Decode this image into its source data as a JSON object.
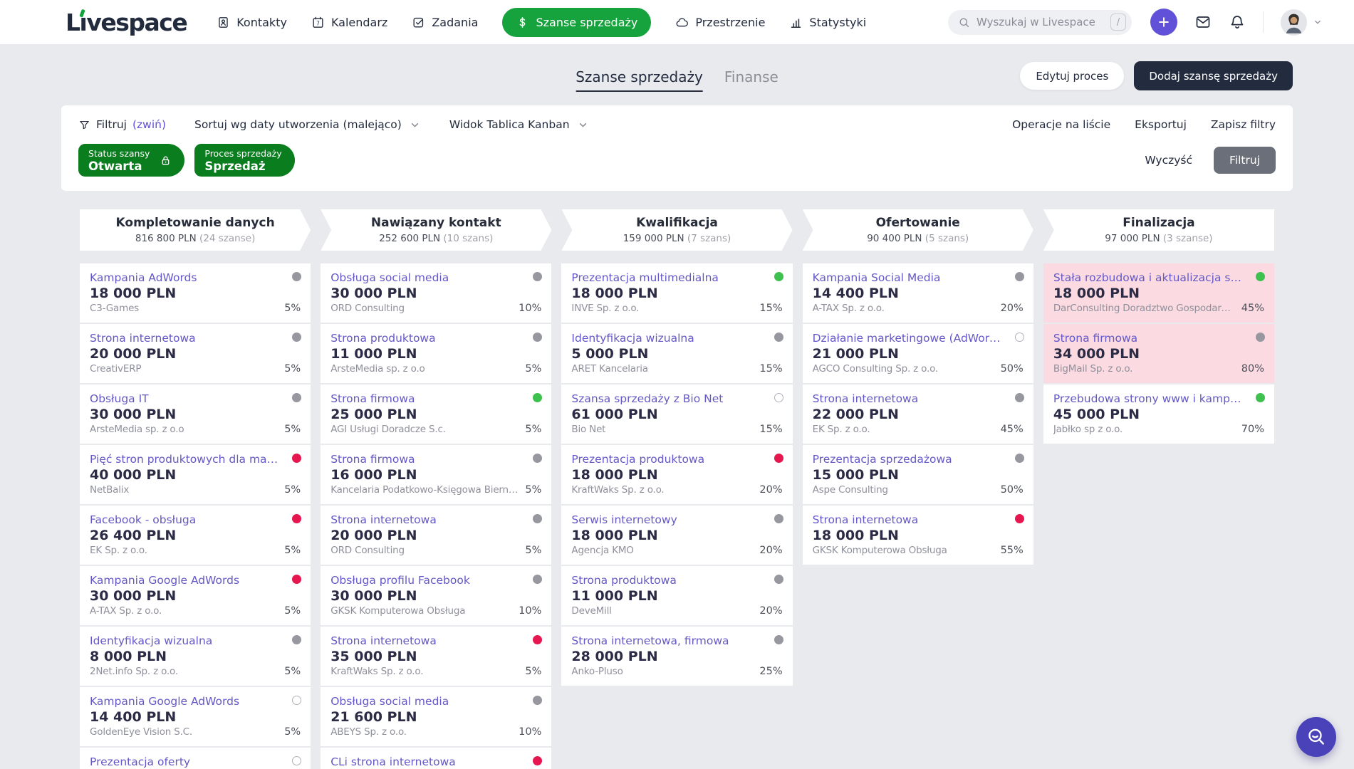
{
  "colors": {
    "brand_green": "#16a23c",
    "chip_green": "#0a7d1e",
    "plus_purple": "#6150d8",
    "fab_purple": "#4a42b8",
    "card_title_purple": "#6458c6",
    "dark_navy": "#232b3e",
    "apply_grey": "#6b6f7a",
    "dot_grey": "#96979f",
    "dot_green": "#3ec14f",
    "dot_red": "#e5174e",
    "highlight_pink": "#fbdbe1"
  },
  "topbar": {
    "logo_text": "Livespace",
    "nav": [
      {
        "label": "Kontakty",
        "icon": "contacts-icon",
        "active": false
      },
      {
        "label": "Kalendarz",
        "icon": "calendar-icon",
        "active": false
      },
      {
        "label": "Zadania",
        "icon": "tasks-icon",
        "active": false
      },
      {
        "label": "Szanse sprzedaży",
        "icon": "dollar-icon",
        "active": true
      },
      {
        "label": "Przestrzenie",
        "icon": "spaces-icon",
        "active": false
      },
      {
        "label": "Statystyki",
        "icon": "stats-icon",
        "active": false
      }
    ],
    "search": {
      "placeholder": "Wyszukaj w Livespace",
      "shortcut_key": "/"
    }
  },
  "page_header": {
    "tabs": [
      {
        "label": "Szanse sprzedaży",
        "active": true
      },
      {
        "label": "Finanse",
        "active": false
      }
    ],
    "edit_process_button": "Edytuj proces",
    "add_opportunity_button": "Dodaj szansę sprzedaży"
  },
  "filter_bar": {
    "filter_label": "Filtruj",
    "collapse_link": "(zwiń)",
    "sort_dropdown": "Sortuj wg daty utworzenia (malejąco)",
    "view_dropdown": "Widok Tablica Kanban",
    "list_operations_link": "Operacje na liście",
    "export_link": "Eksportuj",
    "save_filters_link": "Zapisz filtry",
    "chips": [
      {
        "label": "Status szansy",
        "value": "Otwarta",
        "locked": true
      },
      {
        "label": "Proces sprzedaży",
        "value": "Sprzedaż",
        "locked": false
      }
    ],
    "clear_button": "Wyczyść",
    "apply_button": "Filtruj"
  },
  "board": {
    "columns": [
      {
        "title": "Kompletowanie danych",
        "total": "816 800 PLN",
        "count": "(24 szanse)",
        "cards": [
          {
            "title": "Kampania AdWords",
            "amount": "18 000 PLN",
            "company": "C3-Games",
            "probability": "5%",
            "status": "grey",
            "highlighted": false
          },
          {
            "title": "Strona internetowa",
            "amount": "20 000 PLN",
            "company": "CreativERP",
            "probability": "5%",
            "status": "grey",
            "highlighted": false
          },
          {
            "title": "Obsługa IT",
            "amount": "30 000 PLN",
            "company": "ArsteMedia sp. z o.o",
            "probability": "5%",
            "status": "grey",
            "highlighted": false
          },
          {
            "title": "Pięć stron produktowych dla marek",
            "amount": "40 000 PLN",
            "company": "NetBalix",
            "probability": "5%",
            "status": "red",
            "highlighted": false
          },
          {
            "title": "Facebook - obsługa",
            "amount": "26 400 PLN",
            "company": "EK Sp. z o.o.",
            "probability": "5%",
            "status": "red",
            "highlighted": false
          },
          {
            "title": "Kampania Google AdWords",
            "amount": "30 000 PLN",
            "company": "A-TAX Sp. z o.o.",
            "probability": "5%",
            "status": "red",
            "highlighted": false
          },
          {
            "title": "Identyfikacja wizualna",
            "amount": "8 000 PLN",
            "company": "2Net.info Sp. z o.o.",
            "probability": "5%",
            "status": "grey",
            "highlighted": false
          },
          {
            "title": "Kampania Google AdWords",
            "amount": "14 400 PLN",
            "company": "GoldenEye Vision S.C.",
            "probability": "5%",
            "status": "open",
            "highlighted": false
          },
          {
            "title": "Prezentacja oferty",
            "amount": "",
            "company": "",
            "probability": "",
            "status": "open",
            "highlighted": false
          }
        ]
      },
      {
        "title": "Nawiązany kontakt",
        "total": "252 600 PLN",
        "count": "(10 szans)",
        "cards": [
          {
            "title": "Obsługa social media",
            "amount": "30 000 PLN",
            "company": "ORD Consulting",
            "probability": "10%",
            "status": "grey",
            "highlighted": false
          },
          {
            "title": "Strona produktowa",
            "amount": "11 000 PLN",
            "company": "ArsteMedia sp. z o.o",
            "probability": "5%",
            "status": "grey",
            "highlighted": false
          },
          {
            "title": "Strona firmowa",
            "amount": "25 000 PLN",
            "company": "AGI Usługi Doradcze S.c.",
            "probability": "5%",
            "status": "green",
            "highlighted": false
          },
          {
            "title": "Strona firmowa",
            "amount": "16 000 PLN",
            "company": "Kancelaria Podatkowo-Księgowa Bierna...",
            "probability": "5%",
            "status": "grey",
            "highlighted": false
          },
          {
            "title": "Strona internetowa",
            "amount": "20 000 PLN",
            "company": "ORD Consulting",
            "probability": "5%",
            "status": "grey",
            "highlighted": false
          },
          {
            "title": "Obsługa profilu Facebook",
            "amount": "30 000 PLN",
            "company": "GKSK Komputerowa Obsługa",
            "probability": "10%",
            "status": "grey",
            "highlighted": false
          },
          {
            "title": "Strona internetowa",
            "amount": "35 000 PLN",
            "company": "KraftWaks Sp. z o.o.",
            "probability": "5%",
            "status": "red",
            "highlighted": false
          },
          {
            "title": "Obsługa social media",
            "amount": "21 600 PLN",
            "company": "ABEYS Sp. z o.o.",
            "probability": "10%",
            "status": "grey",
            "highlighted": false
          },
          {
            "title": "CLi strona internetowa",
            "amount": "",
            "company": "",
            "probability": "",
            "status": "red",
            "highlighted": false
          }
        ]
      },
      {
        "title": "Kwalifikacja",
        "total": "159 000 PLN",
        "count": "(7 szans)",
        "cards": [
          {
            "title": "Prezentacja multimedialna",
            "amount": "18 000 PLN",
            "company": "INVE Sp. z o.o.",
            "probability": "15%",
            "status": "green",
            "highlighted": false
          },
          {
            "title": "Identyfikacja wizualna",
            "amount": "5 000 PLN",
            "company": "ARET Kancelaria",
            "probability": "15%",
            "status": "grey",
            "highlighted": false
          },
          {
            "title": "Szansa sprzedaży z Bio Net",
            "amount": "61 000 PLN",
            "company": "Bio Net",
            "probability": "15%",
            "status": "open",
            "highlighted": false
          },
          {
            "title": "Prezentacja produktowa",
            "amount": "18 000 PLN",
            "company": "KraftWaks Sp. z o.o.",
            "probability": "20%",
            "status": "red",
            "highlighted": false
          },
          {
            "title": "Serwis internetowy",
            "amount": "18 000 PLN",
            "company": "Agencja KMO",
            "probability": "20%",
            "status": "grey",
            "highlighted": false
          },
          {
            "title": "Strona produktowa",
            "amount": "11 000 PLN",
            "company": "DeveMill",
            "probability": "20%",
            "status": "grey",
            "highlighted": false
          },
          {
            "title": "Strona internetowa, firmowa",
            "amount": "28 000 PLN",
            "company": "Anko-Pluso",
            "probability": "25%",
            "status": "grey",
            "highlighted": false
          }
        ]
      },
      {
        "title": "Ofertowanie",
        "total": "90 400 PLN",
        "count": "(5 szans)",
        "cards": [
          {
            "title": "Kampania Social Media",
            "amount": "14 400 PLN",
            "company": "A-TAX Sp. z o.o.",
            "probability": "20%",
            "status": "grey",
            "highlighted": false
          },
          {
            "title": "Działanie marketingowe (AdWords i soci...",
            "amount": "21 000 PLN",
            "company": "AGCO Consulting Sp. z o.o.",
            "probability": "50%",
            "status": "open",
            "highlighted": false
          },
          {
            "title": "Strona internetowa",
            "amount": "22 000 PLN",
            "company": "EK Sp. z o.o.",
            "probability": "45%",
            "status": "grey",
            "highlighted": false
          },
          {
            "title": "Prezentacja sprzedażowa",
            "amount": "15 000 PLN",
            "company": "Aspe Consulting",
            "probability": "50%",
            "status": "grey",
            "highlighted": false
          },
          {
            "title": "Strona internetowa",
            "amount": "18 000 PLN",
            "company": "GKSK Komputerowa Obsługa",
            "probability": "55%",
            "status": "red",
            "highlighted": false
          }
        ]
      },
      {
        "title": "Finalizacja",
        "total": "97 000 PLN",
        "count": "(3 szanse)",
        "cards": [
          {
            "title": "Stała rozbudowa i aktualizacja strony",
            "amount": "18 000 PLN",
            "company": "DarConsulting Doradztwo Gospodarcze",
            "probability": "45%",
            "status": "green",
            "highlighted": true
          },
          {
            "title": "Strona firmowa",
            "amount": "34 000 PLN",
            "company": "BigMail Sp. z o.o.",
            "probability": "80%",
            "status": "grey",
            "highlighted": true
          },
          {
            "title": "Przebudowa strony www i kampania",
            "amount": "45 000 PLN",
            "company": "Jabłko sp z o.o.",
            "probability": "70%",
            "status": "green",
            "highlighted": false
          }
        ]
      }
    ]
  },
  "fab": {
    "icon": "search-smile-icon"
  }
}
